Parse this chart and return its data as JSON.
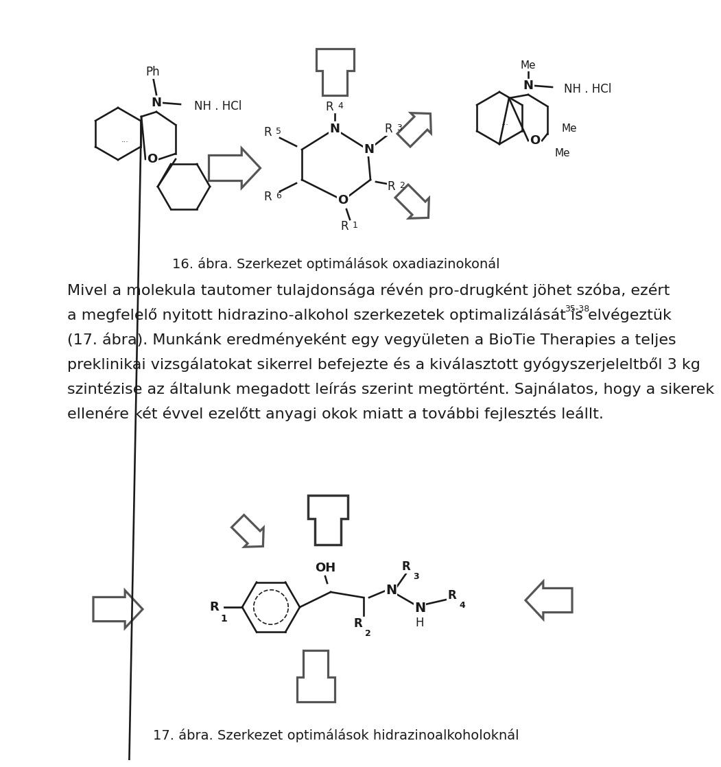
{
  "background_color": "#ffffff",
  "text_color": "#1a1a1a",
  "line_color": "#1a1a1a",
  "fig_caption_16": "16. ábra. Szerkezet optimálások oxadiazinokonál",
  "fig_caption_17": "17. ábra. Szerkezet optimálások hidrazinoalkoholoknál",
  "para_line1": "Mivel a molekula tautomer tulajdonsága révén pro-drugként jöhet szóba, ezért",
  "para_line2a": "a megfelelő nyitott hidrazino-alkohol szerkezetek optimalizálását is elvégeztük",
  "para_line2b": "35-38",
  "para_line3": "(17. ábra). Munkánk eredményeként egy vegyületen a BioTie Therapies a teljes",
  "para_line4": "preklinikai vizsgálatokat sikerrel befejezte és a kiválasztott gyógyszerjeleltből 3 kg",
  "para_line5": "szintézise az általunk megadott leírás szerint megtörtént. Sajnálatos, hogy a sikerek",
  "para_line6": "ellenére két évvel ezelőtt anyagi okok miatt a további fejlesztés leállt.",
  "font_size_body": 16,
  "font_size_caption": 14,
  "font_size_struct": 13,
  "font_size_subscript": 9
}
